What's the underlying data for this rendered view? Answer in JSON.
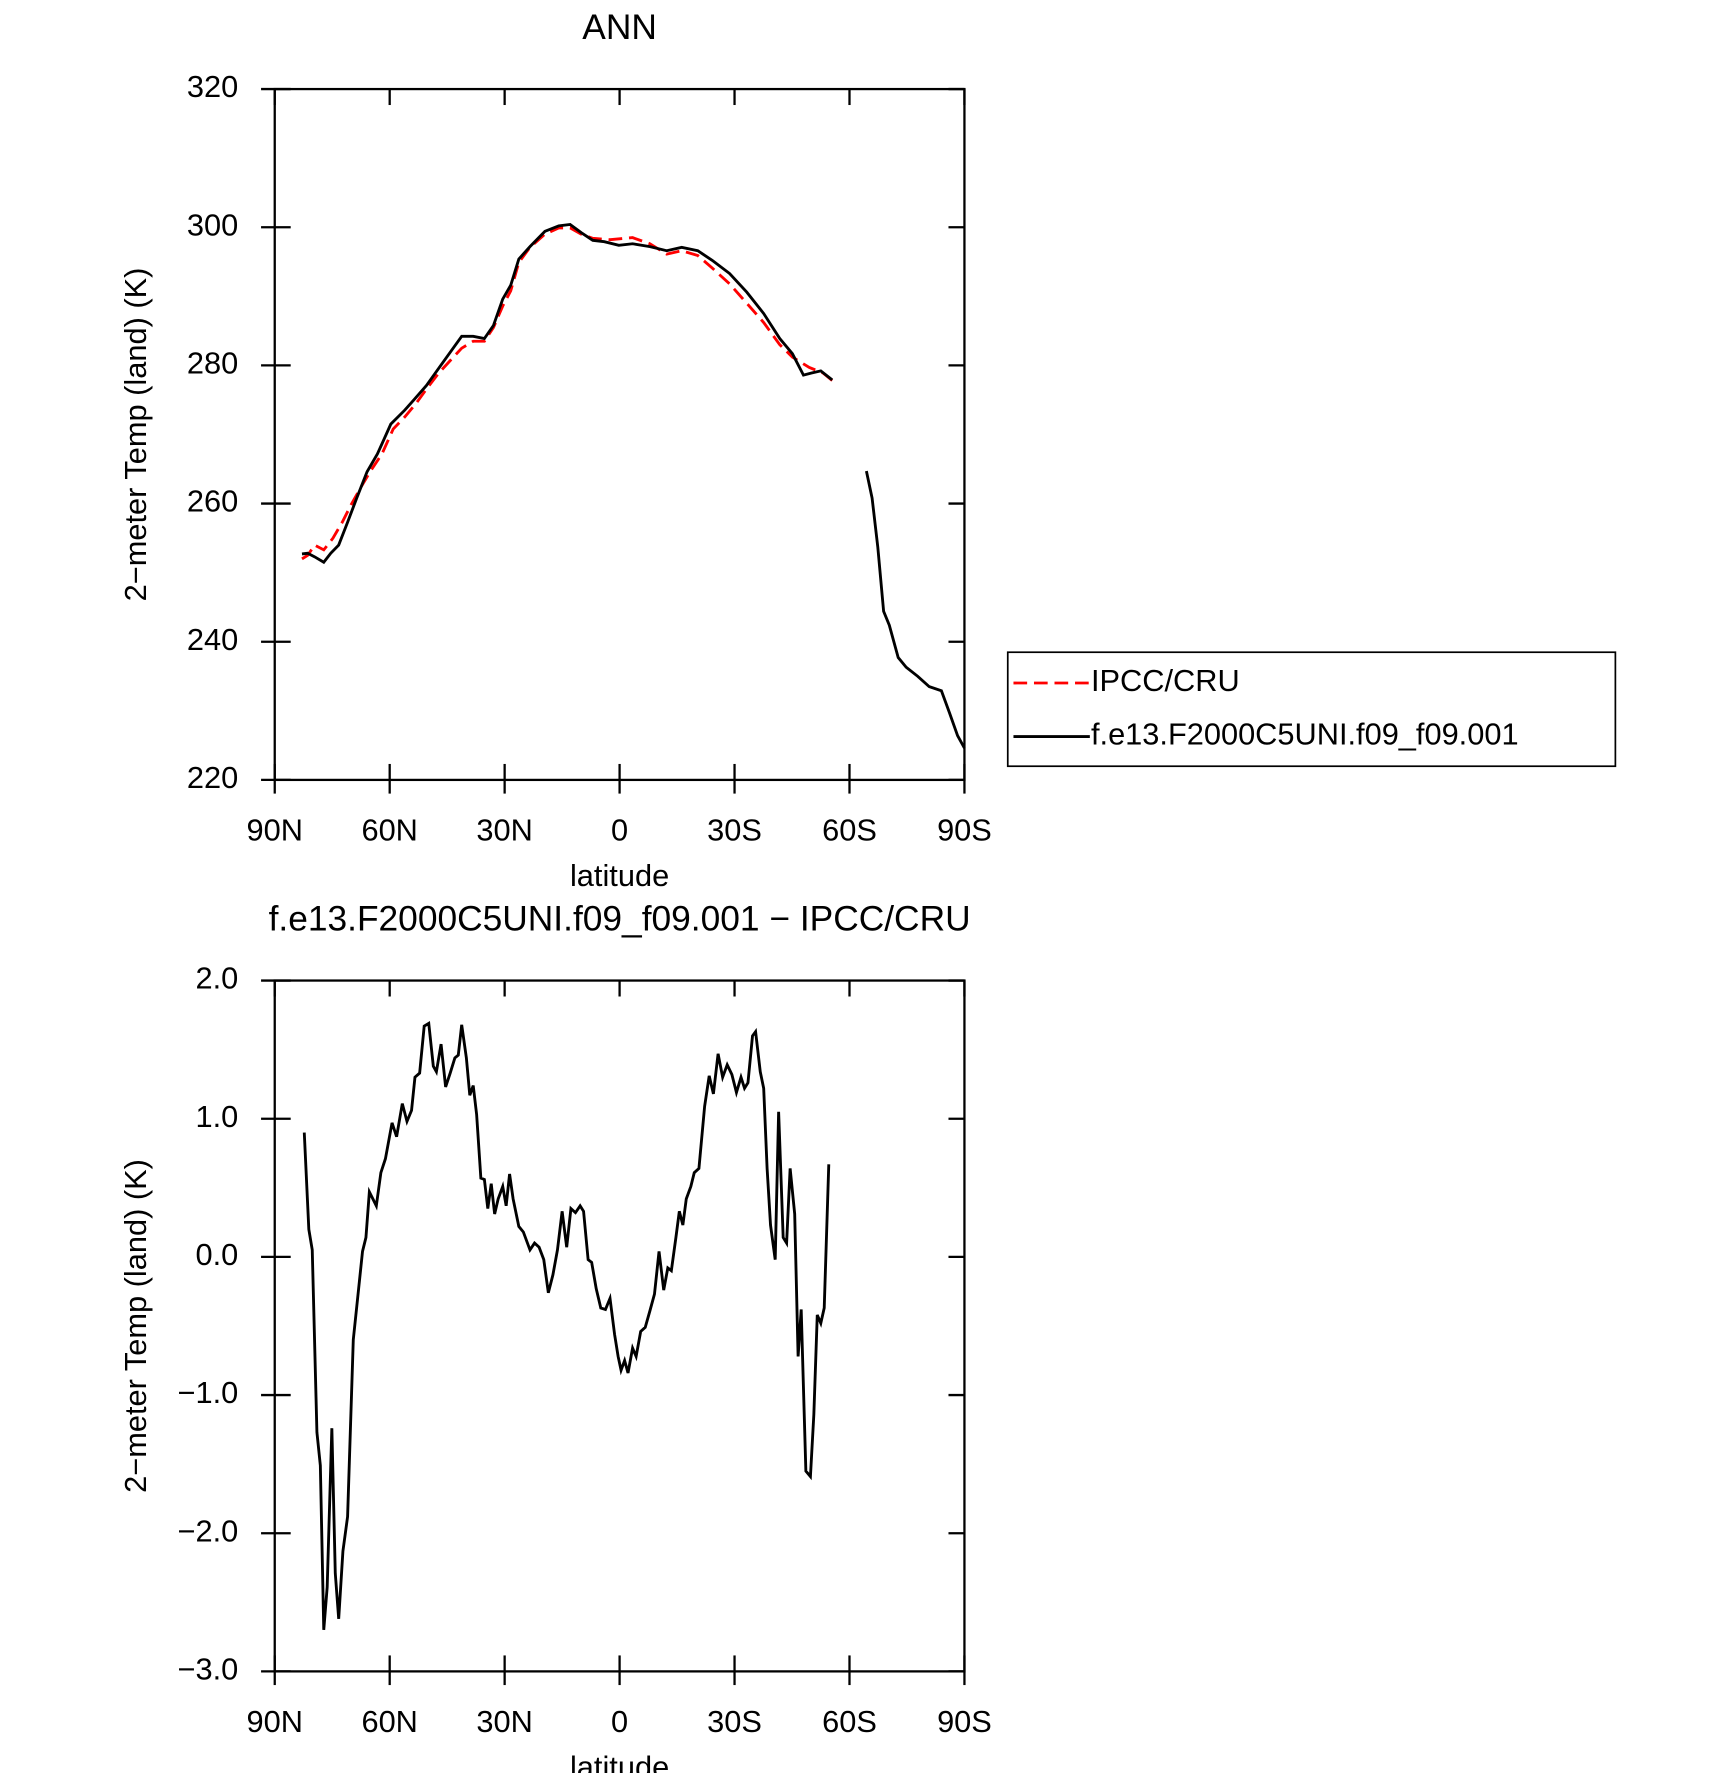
{
  "chart_data": [
    {
      "type": "line",
      "title": "ANN",
      "xlabel": "latitude",
      "ylabel": "2−meter Temp (land) (K)",
      "xlim": [
        90,
        -90
      ],
      "xticks": [
        {
          "value": 90,
          "label": "90N"
        },
        {
          "value": 60,
          "label": "60N"
        },
        {
          "value": 30,
          "label": "30N"
        },
        0,
        {
          "value": -30,
          "label": "30S"
        },
        {
          "value": -60,
          "label": "60S"
        },
        {
          "value": -90,
          "label": "90S"
        }
      ],
      "ylim": [
        220,
        320
      ],
      "yticks": [
        220,
        240,
        260,
        280,
        300,
        320
      ],
      "grid": false,
      "legend": "right",
      "series": [
        {
          "name": "IPCC/CRU",
          "color": "#ff0000",
          "dashed": true,
          "x": [
            82.9,
            81.4,
            79.6,
            77.2,
            74.8,
            72.4,
            70.1,
            67.7,
            65.0,
            62.0,
            59.1,
            56.1,
            53.1,
            50.1,
            47.2,
            44.2,
            41.2,
            38.2,
            35.3,
            32.9,
            30.5,
            28.4,
            26.3,
            23.4,
            19.5,
            15.9,
            12.9,
            10.0,
            7.0,
            2.5,
            -3.4,
            -7.9,
            -12.3,
            -16.2,
            -20.4,
            -24.2,
            -28.7,
            -33.2,
            -37.6,
            -41.8,
            -45.1,
            -49.5,
            -53.1,
            -55.5
          ],
          "values": [
            252.0,
            252.5,
            254.0,
            253.3,
            255.0,
            257.3,
            259.8,
            262.2,
            264.7,
            267.2,
            270.8,
            272.5,
            274.5,
            276.8,
            278.9,
            280.7,
            282.5,
            283.5,
            283.5,
            285.5,
            288.6,
            290.8,
            294.9,
            297.1,
            299.0,
            299.9,
            299.9,
            299.0,
            298.4,
            298.2,
            298.5,
            297.6,
            296.1,
            296.6,
            295.9,
            294.1,
            291.8,
            289.0,
            286.2,
            283.0,
            281.2,
            279.7,
            278.9,
            277.8
          ]
        },
        {
          "name": "f.e13.F2000C5UNI.f09_f09.001",
          "color": "#000000",
          "dashed": false,
          "x": [
            82.9,
            81.4,
            79.6,
            77.2,
            75.4,
            73.3,
            71.0,
            68.6,
            65.9,
            63.2,
            59.7,
            56.1,
            53.7,
            50.4,
            47.2,
            44.2,
            41.2,
            38.2,
            35.3,
            32.9,
            30.5,
            28.4,
            26.3,
            23.4,
            19.5,
            15.9,
            12.9,
            10.0,
            7.0,
            4.0,
            0.2,
            -3.4,
            -7.9,
            -12.3,
            -16.2,
            -20.4,
            -24.2,
            -28.7,
            -33.2,
            -37.6,
            -41.8,
            -45.1,
            -48.0,
            -50.1,
            -52.5,
            -55.5,
            null,
            -64.4,
            -65.9,
            -67.4,
            -68.9,
            -70.4,
            -72.7,
            -74.8,
            -77.8,
            -80.8,
            -84.0,
            -86.1,
            -88.2,
            -90
          ],
          "values": [
            252.7,
            252.8,
            252.3,
            251.5,
            252.8,
            254.0,
            257.3,
            260.8,
            264.6,
            267.2,
            271.5,
            273.5,
            275.0,
            277.1,
            279.6,
            281.9,
            284.2,
            284.2,
            283.9,
            285.8,
            289.6,
            291.6,
            295.4,
            297.2,
            299.4,
            300.2,
            300.4,
            299.2,
            298.1,
            297.9,
            297.4,
            297.6,
            297.2,
            296.6,
            297.1,
            296.6,
            295.2,
            293.3,
            290.6,
            287.5,
            283.9,
            281.7,
            278.6,
            278.9,
            279.2,
            277.9,
            null,
            264.7,
            260.8,
            253.7,
            244.4,
            242.4,
            237.7,
            236.3,
            235.0,
            233.5,
            232.9,
            229.7,
            226.4,
            224.6
          ]
        }
      ]
    },
    {
      "type": "line",
      "title": "f.e13.F2000C5UNI.f09_f09.001 − IPCC/CRU",
      "xlabel": "latitude",
      "ylabel": "2−meter Temp (land) (K)",
      "xlim": [
        90,
        -90
      ],
      "xticks": [
        {
          "value": 90,
          "label": "90N"
        },
        {
          "value": 60,
          "label": "60N"
        },
        {
          "value": 30,
          "label": "30N"
        },
        0,
        {
          "value": -30,
          "label": "30S"
        },
        {
          "value": -60,
          "label": "60S"
        },
        {
          "value": -90,
          "label": "90S"
        }
      ],
      "ylim": [
        -3,
        2
      ],
      "yticks": [
        {
          "value": -3,
          "label": "−3.0"
        },
        {
          "value": -2,
          "label": "−2.0"
        },
        {
          "value": -1,
          "label": "−1.0"
        },
        {
          "value": 0,
          "label": "0.0"
        },
        {
          "value": 1,
          "label": "1.0"
        },
        {
          "value": 2,
          "label": "2.0"
        }
      ],
      "grid": false,
      "color": "#000000",
      "x": [
        82.3,
        81.1,
        80.2,
        79.0,
        78.1,
        77.2,
        76.3,
        75.1,
        74.2,
        73.3,
        72.2,
        71.0,
        69.5,
        67.1,
        66.2,
        65.3,
        63.5,
        62.3,
        61.1,
        59.4,
        58.2,
        56.7,
        55.5,
        54.3,
        53.4,
        52.2,
        51.0,
        49.8,
        48.6,
        47.8,
        46.6,
        45.4,
        44.2,
        43.0,
        42.1,
        41.2,
        40.0,
        39.1,
        38.2,
        37.3,
        36.2,
        35.3,
        34.4,
        33.5,
        32.6,
        31.7,
        30.5,
        29.6,
        28.7,
        27.8,
        26.3,
        25.1,
        23.4,
        22.2,
        21.0,
        19.8,
        18.6,
        17.4,
        16.2,
        15.0,
        13.8,
        12.7,
        11.5,
        10.3,
        9.4,
        8.2,
        7.3,
        6.1,
        4.9,
        3.7,
        2.5,
        1.3,
        0.4,
        -0.4,
        -1.3,
        -2.2,
        -3.4,
        -4.3,
        -5.5,
        -6.7,
        -7.9,
        -9.1,
        -10.3,
        -11.5,
        -12.6,
        -13.5,
        -14.7,
        -15.6,
        -16.5,
        -17.4,
        -18.6,
        -19.5,
        -20.7,
        -22.2,
        -23.4,
        -24.5,
        -25.7,
        -26.9,
        -28.1,
        -29.3,
        -30.5,
        -31.7,
        -32.6,
        -33.5,
        -34.7,
        -35.5,
        -36.7,
        -37.6,
        -38.5,
        -39.4,
        -40.6,
        -41.5,
        -42.7,
        -43.6,
        -44.5,
        -45.7,
        -46.6,
        -47.4,
        -48.6,
        -49.8,
        -50.7,
        -51.6,
        -52.5,
        -53.4,
        -54.6
      ],
      "values": [
        0.9,
        0.2,
        0.05,
        -1.27,
        -1.51,
        -2.7,
        -2.39,
        -1.24,
        -2.29,
        -2.62,
        -2.13,
        -1.88,
        -0.6,
        0.04,
        0.14,
        0.47,
        0.37,
        0.61,
        0.71,
        0.97,
        0.87,
        1.11,
        0.98,
        1.06,
        1.3,
        1.33,
        1.67,
        1.69,
        1.38,
        1.34,
        1.54,
        1.23,
        1.33,
        1.44,
        1.46,
        1.68,
        1.44,
        1.17,
        1.24,
        1.03,
        0.57,
        0.56,
        0.35,
        0.53,
        0.31,
        0.42,
        0.51,
        0.37,
        0.6,
        0.42,
        0.22,
        0.18,
        0.05,
        0.1,
        0.07,
        -0.02,
        -0.26,
        -0.13,
        0.05,
        0.33,
        0.07,
        0.35,
        0.32,
        0.37,
        0.33,
        -0.02,
        -0.04,
        -0.23,
        -0.37,
        -0.38,
        -0.3,
        -0.56,
        -0.72,
        -0.82,
        -0.75,
        -0.84,
        -0.66,
        -0.72,
        -0.54,
        -0.51,
        -0.39,
        -0.27,
        0.04,
        -0.24,
        -0.08,
        -0.1,
        0.14,
        0.33,
        0.23,
        0.42,
        0.51,
        0.61,
        0.64,
        1.09,
        1.31,
        1.18,
        1.47,
        1.3,
        1.39,
        1.32,
        1.19,
        1.3,
        1.22,
        1.26,
        1.6,
        1.63,
        1.34,
        1.22,
        0.64,
        0.23,
        -0.02,
        1.05,
        0.14,
        0.1,
        0.64,
        0.31,
        -0.72,
        -0.38,
        -1.55,
        -1.59,
        -1.14,
        -0.42,
        -0.48,
        -0.37,
        0.67
      ]
    }
  ]
}
